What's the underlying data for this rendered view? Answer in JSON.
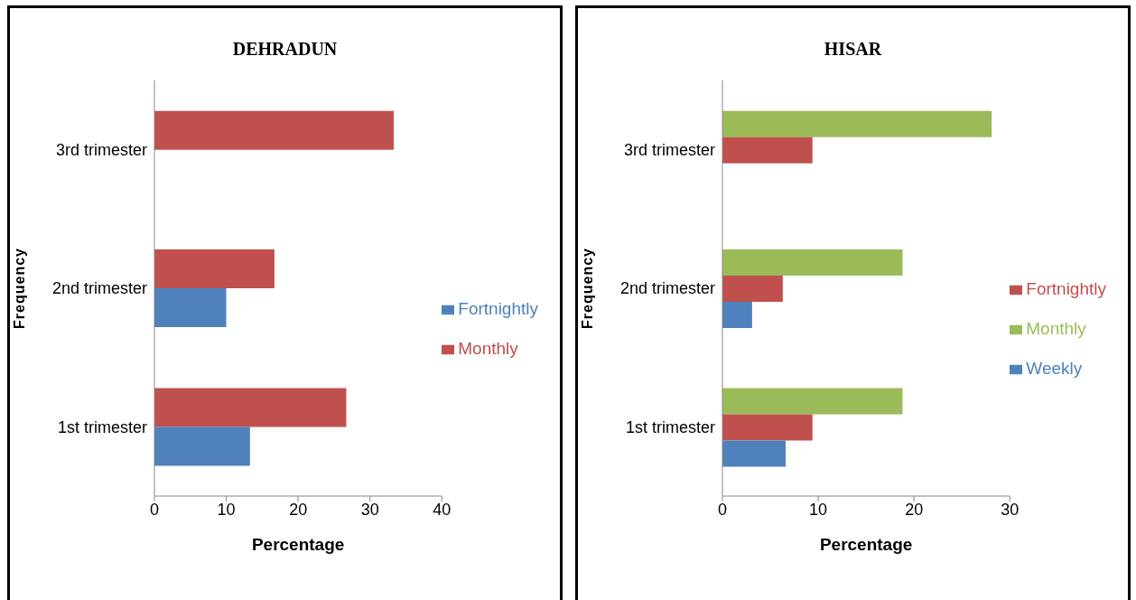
{
  "chart_data": [
    {
      "type": "bar",
      "orientation": "horizontal",
      "title": "DEHRADUN",
      "xlabel": "Percentage",
      "ylabel": "Frequency",
      "categories": [
        "3rd trimester",
        "2nd trimester",
        "1st trimester"
      ],
      "series": [
        {
          "name": "Monthly",
          "color": "#c0504d",
          "values": [
            33.3,
            16.7,
            26.7
          ]
        },
        {
          "name": "Fortnightly",
          "color": "#4f81bd",
          "values": [
            null,
            10,
            13.3
          ]
        }
      ],
      "xlim": [
        0,
        40
      ],
      "xticks": [
        0,
        10,
        20,
        30,
        40
      ],
      "grid": false,
      "legend": "right"
    },
    {
      "type": "bar",
      "orientation": "horizontal",
      "title": "HISAR",
      "xlabel": "Percentage",
      "ylabel": "Frequency",
      "categories": [
        "3rd trimester",
        "2nd trimester",
        "1st trimester"
      ],
      "series": [
        {
          "name": "Monthly",
          "color": "#9bbb59",
          "values": [
            28.1,
            18.8,
            18.8
          ]
        },
        {
          "name": "Fortnightly",
          "color": "#c0504d",
          "values": [
            9.4,
            6.3,
            9.4
          ]
        },
        {
          "name": "Weekly",
          "color": "#4f81bd",
          "values": [
            null,
            3.1,
            6.6
          ]
        }
      ],
      "xlim": [
        0,
        30
      ],
      "xticks": [
        0,
        10,
        20,
        30
      ],
      "grid": false,
      "legend": "right"
    }
  ]
}
